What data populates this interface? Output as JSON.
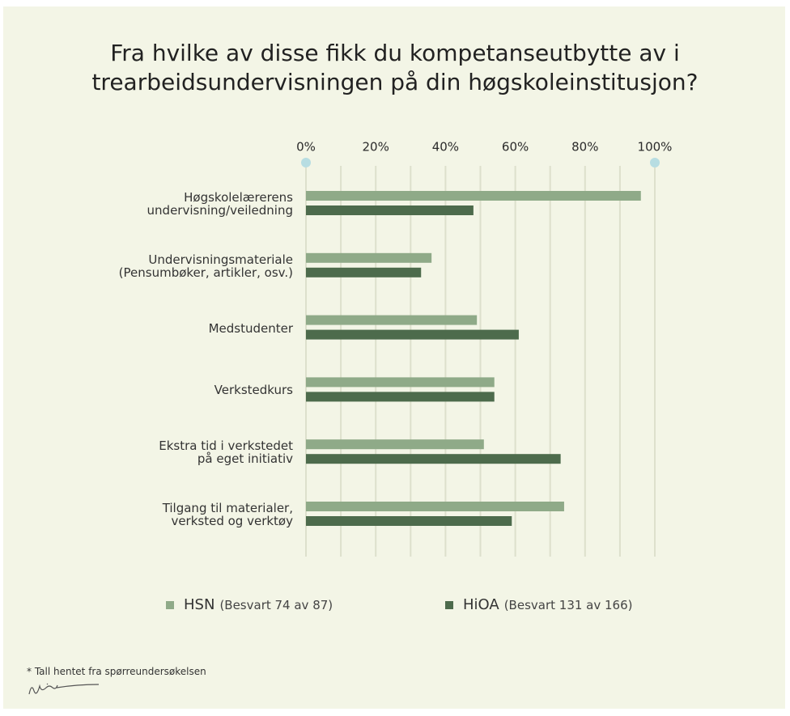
{
  "chart_data": {
    "type": "bar",
    "orientation": "horizontal",
    "title": "Fra hvilke av disse fikk du kompetanseutbytte av i\ntrearbeidsundervisningen på din høgskoleinstitusjon?",
    "categories": [
      "Høgskolelærerens\nundervisning/veiledning",
      "Undervisningsmateriale\n(Pensumbøker, artikler, osv.)",
      "Medstudenter",
      "Verkstedkurs",
      "Ekstra tid i verkstedet\npå eget initiativ",
      "Tilgang til materialer,\nverksted og verktøy"
    ],
    "series": [
      {
        "name": "HSN",
        "legend_note": "(Besvart 74 av 87)",
        "color": "#8faa88",
        "values": [
          96,
          36,
          49,
          54,
          51,
          74
        ]
      },
      {
        "name": "HiOA",
        "legend_note": "(Besvart 131 av 166)",
        "color": "#4d6b4c",
        "values": [
          48,
          33,
          61,
          54,
          73,
          59
        ]
      }
    ],
    "xlim": [
      0,
      100
    ],
    "xticks": [
      {
        "value": 0,
        "label": "0%"
      },
      {
        "value": 20,
        "label": "20%"
      },
      {
        "value": 40,
        "label": "40%"
      },
      {
        "value": 60,
        "label": "60%"
      },
      {
        "value": 80,
        "label": "80%"
      },
      {
        "value": 100,
        "label": "100%"
      }
    ],
    "xgrid": [
      0,
      10,
      20,
      30,
      40,
      50,
      60,
      70,
      80,
      90,
      100
    ],
    "grid": true,
    "legend": "bottom",
    "footnote": "* Tall hentet fra spørreundersøkelsen"
  }
}
